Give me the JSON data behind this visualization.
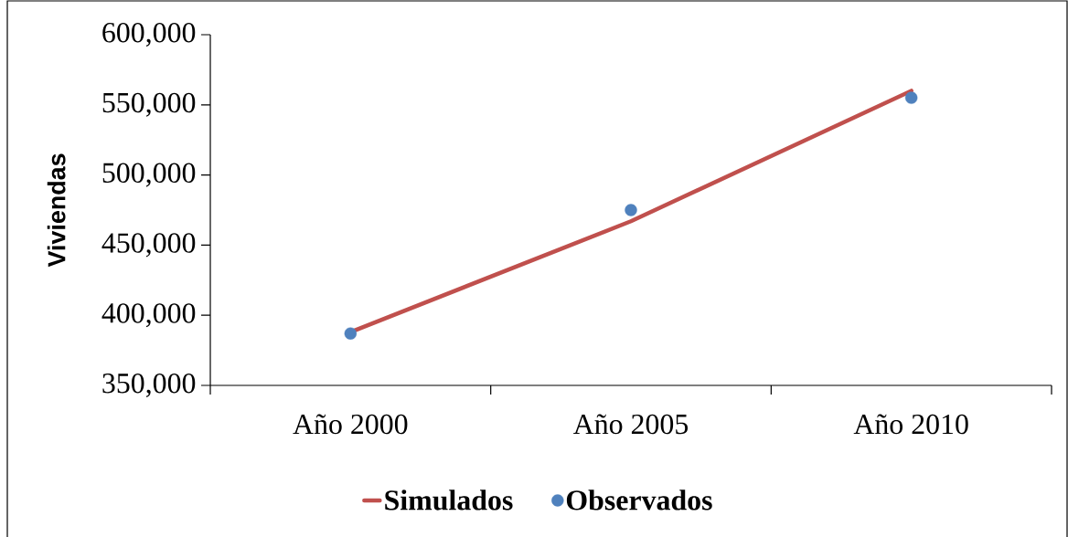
{
  "chart_data": {
    "type": "line",
    "ylabel": "Viviendas",
    "categories": [
      "Año 2000",
      "Año 2005",
      "Año 2010"
    ],
    "ylim": [
      350000,
      600000
    ],
    "yticks": [
      {
        "value": 350000,
        "label": "350,000"
      },
      {
        "value": 400000,
        "label": "400,000"
      },
      {
        "value": 450000,
        "label": "450,000"
      },
      {
        "value": 500000,
        "label": "500,000"
      },
      {
        "value": 550000,
        "label": "550,000"
      },
      {
        "value": 600000,
        "label": "600,000"
      }
    ],
    "legend": "bottom",
    "grid": false,
    "series": [
      {
        "name": "Simulados",
        "color": "#c0504d",
        "marker": "none",
        "values": [
          388000,
          467000,
          560000
        ]
      },
      {
        "name": "Observados",
        "type": "scatter",
        "color": "#4f81bd",
        "marker": "circle",
        "values": [
          387000,
          475000,
          555000
        ]
      }
    ]
  }
}
